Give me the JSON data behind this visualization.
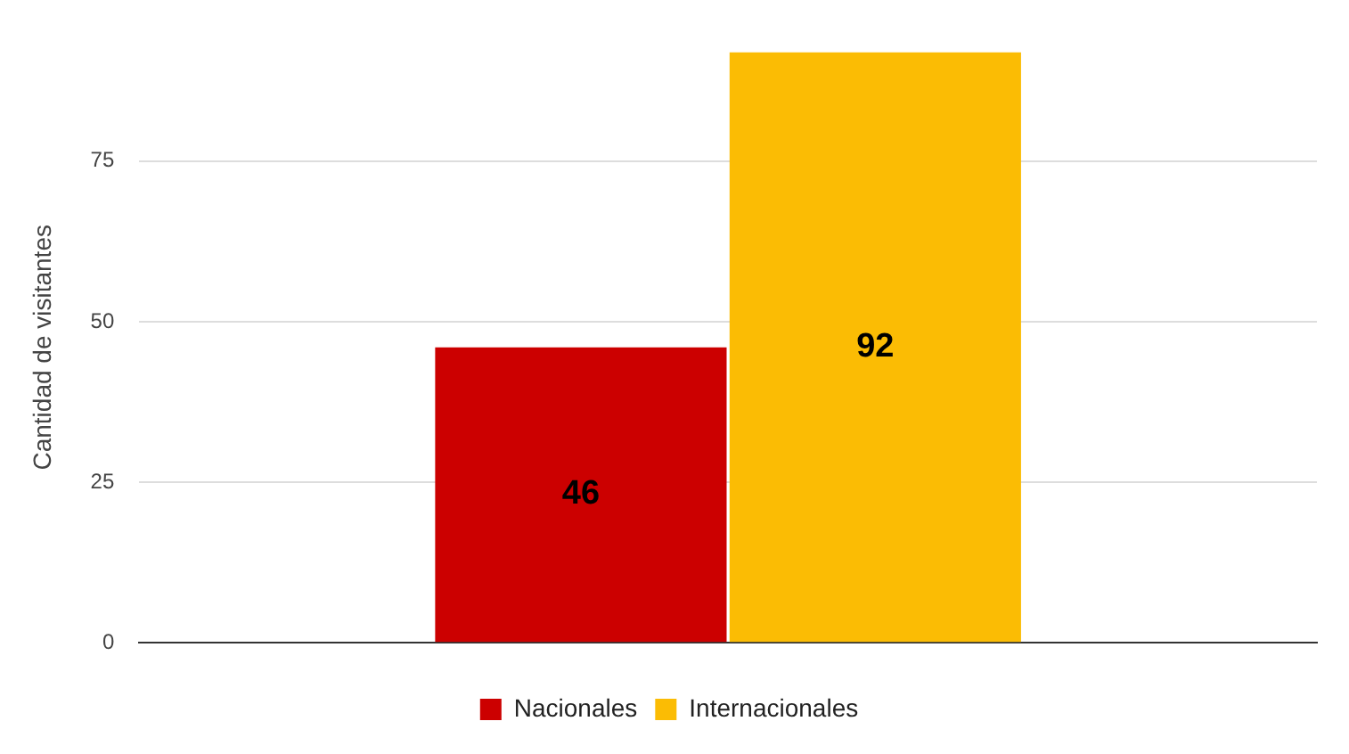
{
  "chart_data": {
    "type": "bar",
    "ylabel": "Cantidad de visitantes",
    "categories": [
      null
    ],
    "series": [
      {
        "name": "Nacionales",
        "color": "#cc0000",
        "values": [
          46
        ]
      },
      {
        "name": "Internacionales",
        "color": "#fbbc04",
        "values": [
          92
        ]
      }
    ],
    "ylim": [
      0,
      92
    ],
    "yticks": [
      0,
      25,
      50,
      75
    ],
    "grid": "y",
    "legend": "bottom",
    "data_labels": true
  }
}
